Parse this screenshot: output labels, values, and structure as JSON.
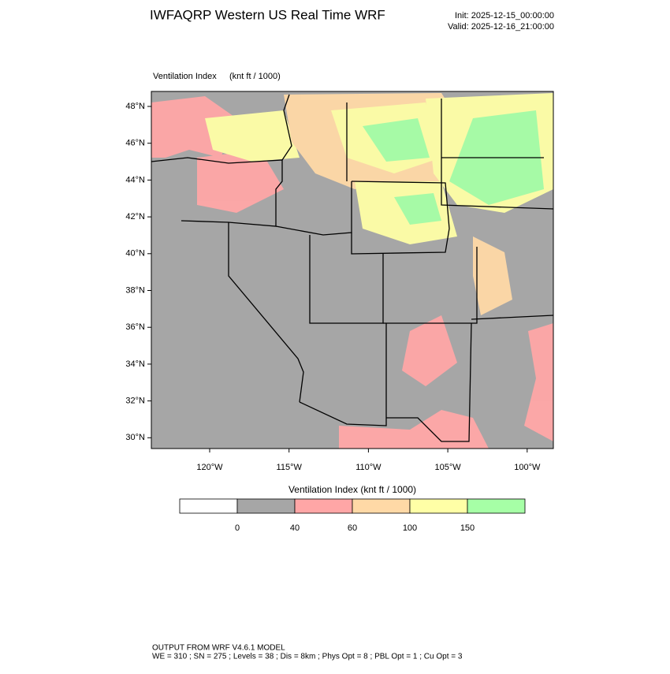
{
  "header": {
    "title": "IWFAQRP Western US Real Time WRF",
    "init": "Init: 2025-12-15_00:00:00",
    "valid": "Valid: 2025-12-16_21:00:00"
  },
  "map": {
    "field": "Ventilation Index",
    "units": "(knt ft / 1000)",
    "lat_labels": [
      "48°N",
      "46°N",
      "44°N",
      "42°N",
      "40°N",
      "38°N",
      "36°N",
      "34°N",
      "32°N",
      "30°N"
    ],
    "lon_labels": [
      "120°W",
      "115°W",
      "110°W",
      "105°W",
      "100°W"
    ]
  },
  "colorbar": {
    "title": "Ventilation Index   (knt ft / 1000)",
    "colors": [
      "#ffffff",
      "#a6a6a6",
      "#ffa6a6",
      "#ffd9a6",
      "#ffffa6",
      "#a6ffa6"
    ],
    "ticks": [
      0,
      40,
      60,
      100,
      150
    ]
  },
  "footer": {
    "line1": "OUTPUT FROM WRF V4.6.1 MODEL",
    "line2": "WE = 310 ; SN = 275 ; Levels = 38 ; Dis = 8km ; Phys Opt = 8 ; PBL Opt = 1 ; Cu Opt = 3"
  }
}
